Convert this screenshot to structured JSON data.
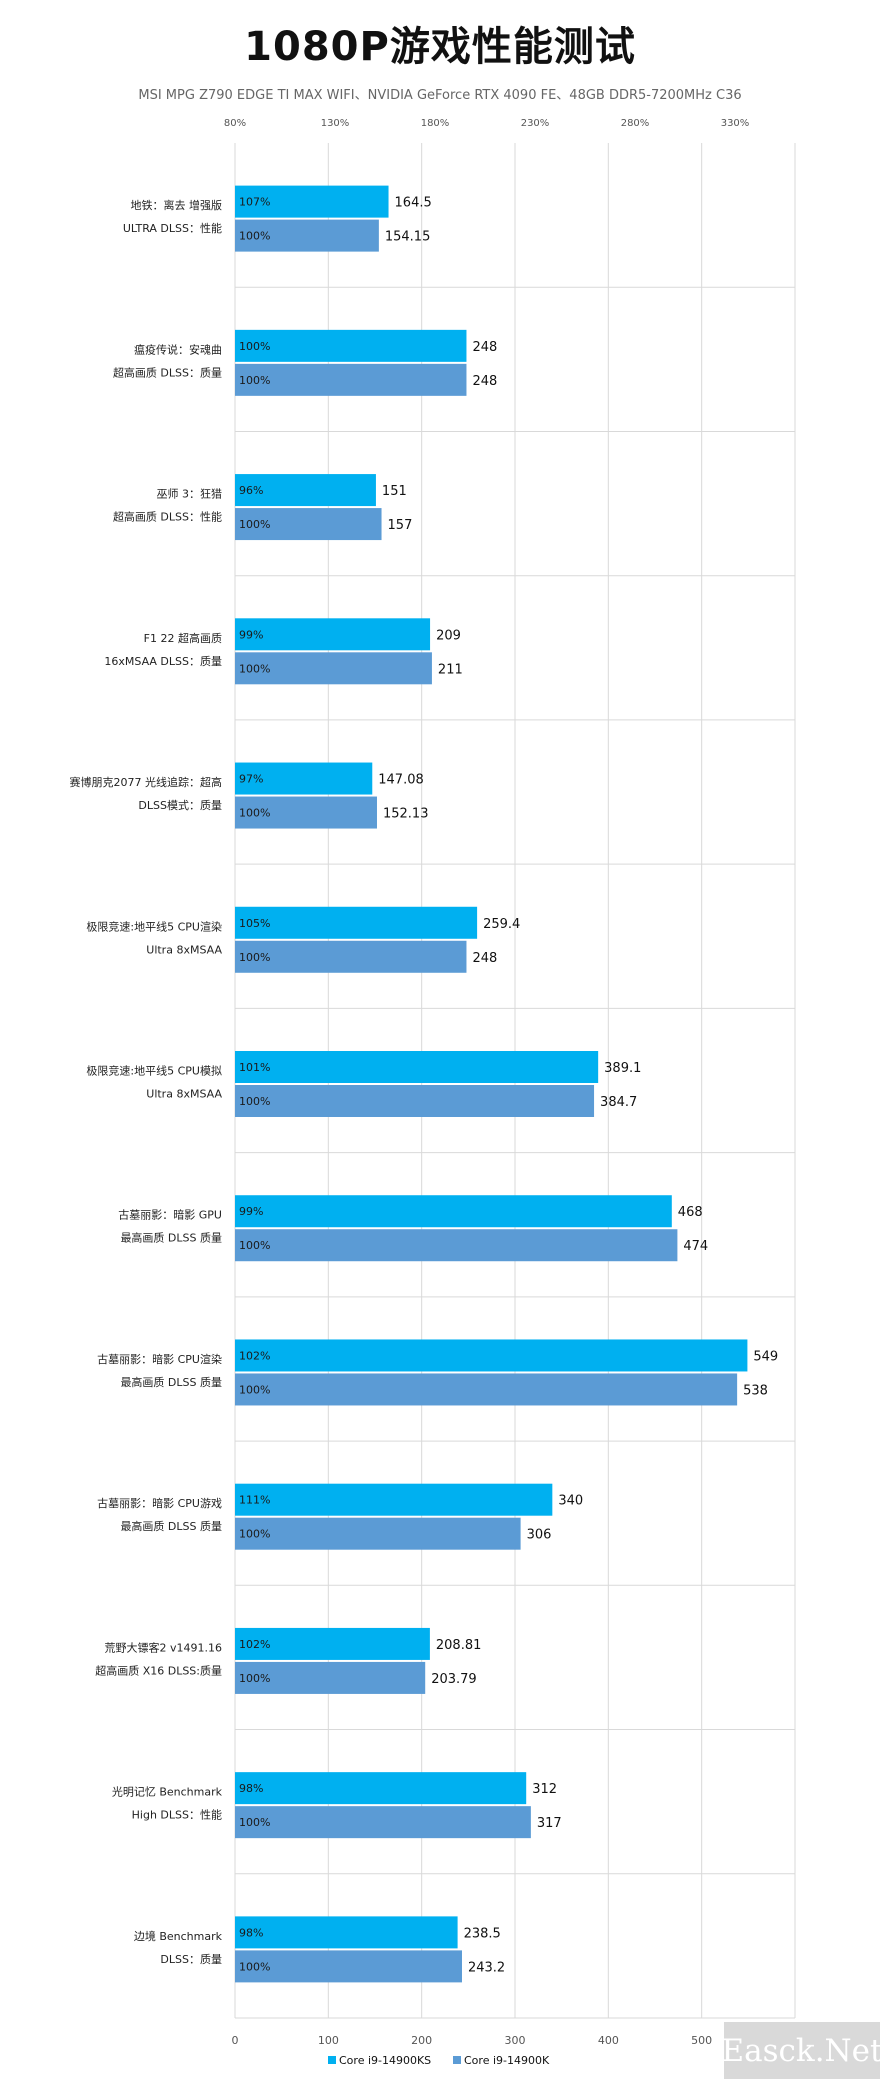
{
  "page": {
    "title": "1080P游戏性能测试",
    "subtitle": "MSI MPG Z790 EDGE TI MAX WIFI、NVIDIA GeForce RTX 4090 FE、48GB DDR5-7200MHz C36",
    "watermark": "Easck.Net"
  },
  "colors": {
    "series_ks": "#00b0f0",
    "series_k": "#5b9bd5",
    "grid": "#d9d9d9",
    "text": "#222222"
  },
  "chart_data": {
    "type": "bar",
    "orientation": "horizontal",
    "title": "1080P游戏性能测试",
    "subtitle": "MSI MPG Z790 EDGE TI MAX WIFI、NVIDIA GeForce RTX 4090 FE、48GB DDR5-7200MHz C36",
    "categories": [
      [
        "地铁：离去 增强版",
        "ULTRA DLSS：性能"
      ],
      [
        "瘟疫传说：安魂曲",
        "超高画质 DLSS：质量"
      ],
      [
        "巫师 3：狂猎",
        "超高画质 DLSS：性能"
      ],
      [
        "F1 22 超高画质",
        "16xMSAA DLSS：质量"
      ],
      [
        "赛博朋克2077 光线追踪：超高",
        "DLSS模式：质量"
      ],
      [
        "极限竞速:地平线5 CPU渲染",
        "Ultra 8xMSAA"
      ],
      [
        "极限竞速:地平线5 CPU模拟",
        "Ultra 8xMSAA"
      ],
      [
        "古墓丽影：暗影 GPU",
        "最高画质 DLSS 质量"
      ],
      [
        "古墓丽影：暗影 CPU渲染",
        "最高画质 DLSS 质量"
      ],
      [
        "古墓丽影：暗影 CPU游戏",
        "最高画质 DLSS 质量"
      ],
      [
        "荒野大镖客2 v1491.16",
        "超高画质 X16 DLSS:质量"
      ],
      [
        "光明记忆 Benchmark",
        "High DLSS：性能"
      ],
      [
        "边境 Benchmark",
        "DLSS：质量"
      ]
    ],
    "series": [
      {
        "name": "Core i9-14900KS",
        "values": [
          164.5,
          248,
          151,
          209,
          147.08,
          259.4,
          389.1,
          468,
          549,
          340,
          208.81,
          312,
          238.5
        ],
        "value_labels": [
          "164.5",
          "248",
          "151",
          "209",
          "147.08",
          "259.4",
          "389.1",
          "468",
          "549",
          "340",
          "208.81",
          "312",
          "238.5"
        ],
        "pct_labels": [
          "107%",
          "100%",
          "96%",
          "99%",
          "97%",
          "105%",
          "101%",
          "99%",
          "102%",
          "111%",
          "102%",
          "98%",
          "98%"
        ]
      },
      {
        "name": "Core i9-14900K",
        "values": [
          154.15,
          248,
          157,
          211,
          152.13,
          248,
          384.7,
          474,
          538,
          306,
          203.79,
          317,
          243.2
        ],
        "value_labels": [
          "154.15",
          "248",
          "157",
          "211",
          "152.13",
          "248",
          "384.7",
          "474",
          "538",
          "306",
          "203.79",
          "317",
          "243.2"
        ],
        "pct_labels": [
          "100%",
          "100%",
          "100%",
          "100%",
          "100%",
          "100%",
          "100%",
          "100%",
          "100%",
          "100%",
          "100%",
          "100%",
          "100%"
        ]
      }
    ],
    "x_axis": {
      "ticks": [
        0,
        100,
        200,
        300,
        400,
        500,
        600
      ],
      "tick_labels": [
        "0",
        "100",
        "200",
        "300",
        "400",
        "500",
        ""
      ],
      "xlim": [
        0,
        600
      ]
    },
    "top_axis": {
      "tick_labels": [
        "80%",
        "130%",
        "180%",
        "230%",
        "280%",
        "330%"
      ]
    },
    "grid": true,
    "legend_position": "bottom-center"
  }
}
